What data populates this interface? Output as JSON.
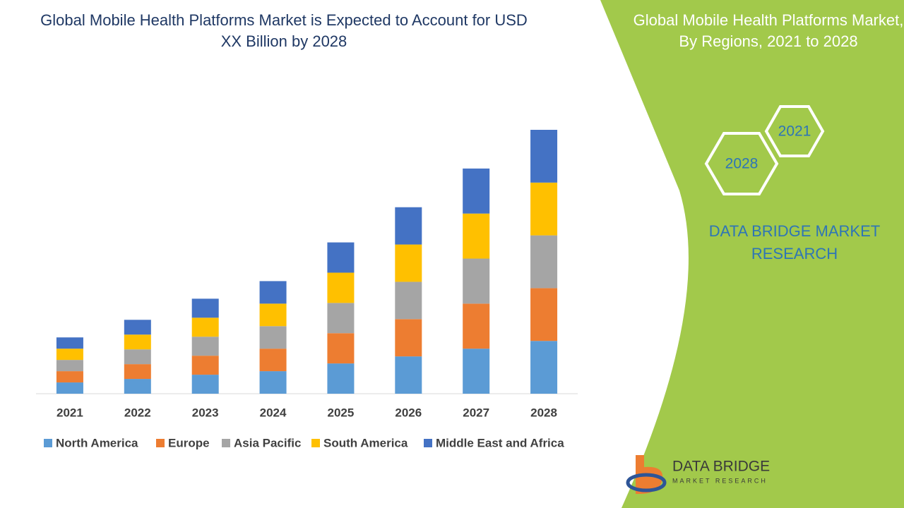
{
  "chart_data": {
    "type": "stacked_bar",
    "title": "Global Mobile Health Platforms Market is Expected to Account for USD XX Billion by 2028",
    "categories": [
      "2021",
      "2022",
      "2023",
      "2024",
      "2025",
      "2026",
      "2027",
      "2028"
    ],
    "series": [
      {
        "name": "North America",
        "color": "#5b9bd5",
        "values": [
          1.6,
          2.1,
          2.7,
          3.2,
          4.3,
          5.3,
          6.4,
          7.5
        ]
      },
      {
        "name": "Europe",
        "color": "#ed7d31",
        "values": [
          1.6,
          2.1,
          2.7,
          3.2,
          4.3,
          5.3,
          6.4,
          7.5
        ]
      },
      {
        "name": "Asia Pacific",
        "color": "#a5a5a5",
        "values": [
          1.6,
          2.1,
          2.7,
          3.2,
          4.3,
          5.3,
          6.4,
          7.5
        ]
      },
      {
        "name": "South America",
        "color": "#ffc000",
        "values": [
          1.6,
          2.1,
          2.7,
          3.2,
          4.3,
          5.3,
          6.4,
          7.5
        ]
      },
      {
        "name": "Middle East and Africa",
        "color": "#4472c4",
        "values": [
          1.6,
          2.1,
          2.7,
          3.2,
          4.3,
          5.3,
          6.4,
          7.5
        ]
      }
    ],
    "legend": "bottom"
  },
  "side_panel": {
    "title": "Global Mobile Health Platforms Market, By Regions, 2021 to 2028",
    "hex_labels": [
      "2021",
      "2028"
    ],
    "brand": "DATA BRIDGE MARKET RESEARCH"
  },
  "logo": {
    "name": "DATA BRIDGE",
    "tagline": "MARKET RESEARCH"
  }
}
